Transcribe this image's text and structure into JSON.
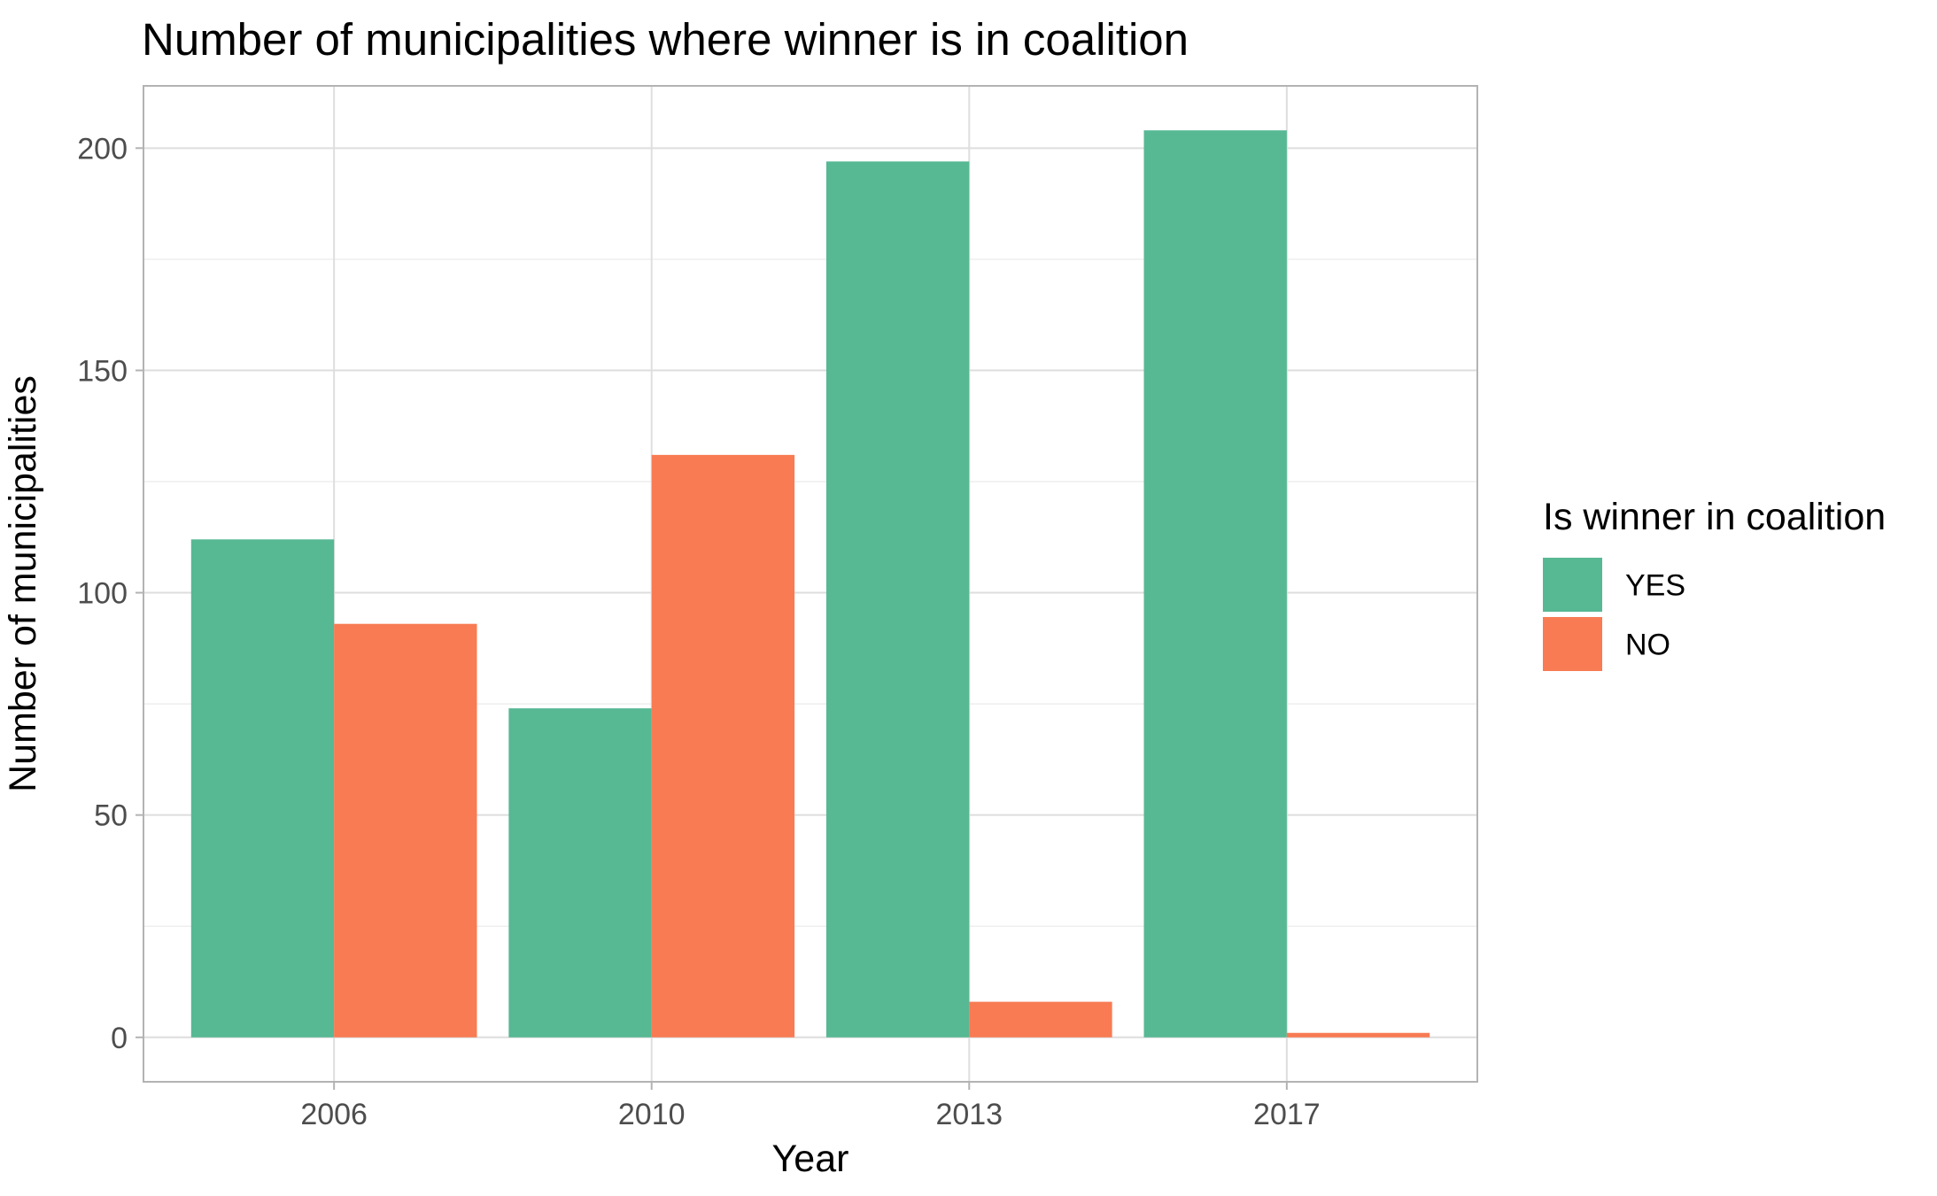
{
  "chart_data": {
    "type": "bar",
    "title": "Number of municipalities where winner is in coalition",
    "xlabel": "Year",
    "ylabel": "Number of municipalities",
    "categories": [
      "2006",
      "2010",
      "2013",
      "2017"
    ],
    "series": [
      {
        "name": "YES",
        "color": "#57b894",
        "values": [
          112,
          74,
          197,
          204
        ]
      },
      {
        "name": "NO",
        "color": "#f87b53",
        "values": [
          93,
          131,
          8,
          1
        ]
      }
    ],
    "ylim": [
      -10,
      214
    ],
    "yticks": [
      0,
      50,
      100,
      150,
      200
    ],
    "ytick_labels": [
      "0",
      "50",
      "100",
      "150",
      "200"
    ],
    "grid": true,
    "legend": {
      "title": "Is winner in coalition",
      "placement": "right"
    }
  }
}
